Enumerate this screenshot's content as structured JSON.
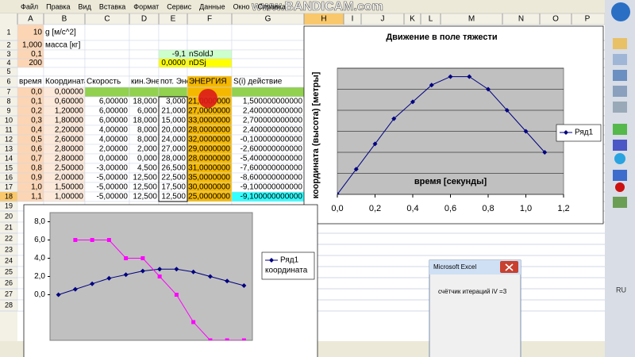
{
  "watermark": "www.BANDICAM.com",
  "menu": [
    "Файл",
    "Правка",
    "Вид",
    "Вставка",
    "Формат",
    "Сервис",
    "Данные",
    "Окно",
    "Справка"
  ],
  "sheet": {
    "columns": [
      "A",
      "B",
      "C",
      "D",
      "E",
      "F",
      "G",
      "H",
      "I",
      "J",
      "K",
      "L",
      "M",
      "N",
      "O",
      "P"
    ],
    "row_numbers": [
      "1",
      "2",
      "3",
      "4",
      "5",
      "6",
      "7",
      "8",
      "9",
      "10",
      "11",
      "12",
      "13",
      "14",
      "15",
      "16",
      "17",
      "18",
      "19",
      "20",
      "21",
      "22",
      "23",
      "24",
      "25",
      "26",
      "27",
      "28"
    ],
    "cells": [
      [
        "10",
        "g [м/с^2]",
        null,
        null,
        null,
        null,
        null
      ],
      [
        "1,000",
        "масса [кг]",
        null,
        null,
        null,
        null,
        null
      ],
      [
        "0,1",
        null,
        null,
        null,
        "-9,1",
        "nSoldJ",
        null
      ],
      [
        "200",
        null,
        null,
        null,
        "0,0000",
        "nDSj",
        null
      ],
      [
        null,
        null,
        null,
        null,
        null,
        null,
        null
      ],
      [
        "время",
        "Координата",
        "Скорость",
        "кин.Энерги",
        "пот. Эне",
        "ЭНЕРГИЯ",
        "S(i) действие"
      ],
      [
        "0,0",
        "0,00000",
        null,
        null,
        null,
        null,
        null
      ],
      [
        "0,1",
        "0,60000",
        "6,00000",
        "18,000",
        "3,000",
        "21,0000000",
        "1,500000000000"
      ],
      [
        "0,2",
        "1,20000",
        "6,00000",
        "6,000",
        "21,000",
        "27,0000000",
        "2,400000000000"
      ],
      [
        "0,3",
        "1,80000",
        "6,00000",
        "18,000",
        "15,000",
        "33,0000000",
        "2,700000000000"
      ],
      [
        "0,4",
        "2,20000",
        "4,00000",
        "8,000",
        "20,000",
        "28,0000000",
        "2,400000000000"
      ],
      [
        "0,5",
        "2,60000",
        "4,00000",
        "8,000",
        "24,000",
        "32,0000000",
        "-0,100000000000"
      ],
      [
        "0,6",
        "2,80000",
        "2,00000",
        "2,000",
        "27,000",
        "29,0000000",
        "-2,600000000000"
      ],
      [
        "0,7",
        "2,80000",
        "0,00000",
        "0,000",
        "28,000",
        "28,0000000",
        "-5,400000000000"
      ],
      [
        "0,8",
        "2,50000",
        "-3,00000",
        "4,500",
        "26,500",
        "31,0000000",
        "-7,600000000000"
      ],
      [
        "0,9",
        "2,00000",
        "-5,00000",
        "12,500",
        "22,500",
        "35,0000000",
        "-8,600000000000"
      ],
      [
        "1,0",
        "1,50000",
        "-5,00000",
        "12,500",
        "17,500",
        "30,0000000",
        "-9,100000000000"
      ],
      [
        "1,1",
        "1,00000",
        "-5,00000",
        "12,500",
        "12,500",
        "25,0000000",
        "-9,100000000000"
      ]
    ]
  },
  "chart_data": [
    {
      "type": "line",
      "title": "Движение в поле тяжести",
      "x_label": "время [секунды]",
      "y_label": "координата (высота) [метры]",
      "x": [
        0,
        0.1,
        0.2,
        0.3,
        0.4,
        0.5,
        0.6,
        0.7,
        0.8,
        0.9,
        1.0,
        1.1
      ],
      "series": [
        {
          "name": "Ряд1",
          "color": "#000080",
          "values": [
            0,
            0.6,
            1.2,
            1.8,
            2.2,
            2.6,
            2.8,
            2.8,
            2.5,
            2.0,
            1.5,
            1.0
          ]
        }
      ],
      "xlim": [
        0,
        1.2
      ],
      "xticks": [
        {
          "value": 0,
          "label": "0,0"
        },
        {
          "value": 0.2,
          "label": "0,2"
        },
        {
          "value": 0.4,
          "label": "0,4"
        },
        {
          "value": 0.6,
          "label": "0,6"
        },
        {
          "value": 0.8,
          "label": "0,8"
        },
        {
          "value": 1.0,
          "label": "1,0"
        },
        {
          "value": 1.2,
          "label": "1,2"
        }
      ],
      "ylim": [
        0,
        3
      ],
      "yticks": [
        0,
        0.5,
        1,
        1.5,
        2,
        2.5,
        3
      ],
      "grid": true
    },
    {
      "type": "line",
      "categories": [
        null,
        null,
        null,
        null,
        null,
        null,
        null,
        null,
        null,
        null,
        null,
        null
      ],
      "series": [
        {
          "name": "Ряд1",
          "color": "#000080",
          "values": [
            0,
            0.6,
            1.2,
            1.8,
            2.2,
            2.6,
            2.8,
            2.8,
            2.5,
            2.0,
            1.5,
            1.0
          ]
        },
        {
          "name": "координата",
          "color": "#ff00ff",
          "values": [
            null,
            6,
            6,
            6,
            4,
            4,
            2,
            0,
            -3,
            -5,
            -5,
            -5
          ]
        }
      ],
      "ylim": [
        -5,
        9
      ],
      "yticks": [
        {
          "value": 0,
          "label": "0,0"
        },
        {
          "value": 2,
          "label": "2,0"
        },
        {
          "value": 4,
          "label": "4,0"
        },
        {
          "value": 6,
          "label": "6,0"
        },
        {
          "value": 8,
          "label": "8,0"
        }
      ],
      "grid": false
    }
  ],
  "dialog": {
    "title": "Microsoft Excel",
    "message": "счётчик итераций iV =3"
  },
  "sidebar": {
    "language": "RU"
  }
}
